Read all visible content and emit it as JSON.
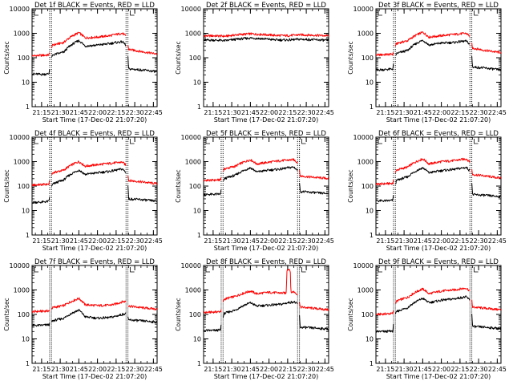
{
  "figure": {
    "background": "#ffffff",
    "axis_color": "#000000"
  },
  "chart_data": [
    {
      "type": "line",
      "title": "Det 1f BLACK = Events, RED = LLD",
      "xlabel": "Start Time (17-Dec-02 21:07:20)",
      "ylabel": "Counts/sec",
      "x_ticks": [
        "21:15",
        "21:30",
        "21:45",
        "22:00",
        "22:15",
        "22:30",
        "22:45"
      ],
      "y_ticks": [
        "1",
        "10",
        "100",
        "1000",
        "10000"
      ],
      "yscale": "log",
      "ylim": [
        1,
        10000
      ],
      "xlim": [
        "21:07:20",
        "22:48:00"
      ],
      "gaps": [
        [
          "21:21:30",
          "21:23:00"
        ],
        [
          "22:23:00",
          "22:24:30"
        ]
      ],
      "series": [
        {
          "color": "#ff0000",
          "x": [
            "21:07:20",
            "21:15",
            "21:21",
            "21:24",
            "21:33",
            "21:45",
            "21:50",
            "22:00",
            "22:10",
            "22:15",
            "22:20",
            "22:23",
            "22:25",
            "22:35",
            "22:45",
            "22:48"
          ],
          "values": [
            120,
            125,
            130,
            330,
            420,
            1050,
            650,
            700,
            800,
            900,
            1000,
            750,
            220,
            180,
            150,
            145
          ]
        },
        {
          "color": "#000000",
          "x": [
            "21:07:20",
            "21:15",
            "21:21",
            "21:24",
            "21:33",
            "21:45",
            "21:50",
            "22:00",
            "22:10",
            "22:15",
            "22:20",
            "22:23",
            "22:25",
            "22:35",
            "22:45",
            "22:48"
          ],
          "values": [
            22,
            21,
            22,
            130,
            170,
            500,
            300,
            330,
            380,
            420,
            450,
            320,
            35,
            32,
            28,
            27
          ]
        }
      ]
    },
    {
      "type": "line",
      "title": "Det 2f BLACK = Events, RED = LLD",
      "xlabel": "Start Time (17-Dec-02 21:07:20)",
      "ylabel": "Counts/sec",
      "x_ticks": [
        "21:15",
        "21:30",
        "21:45",
        "22:00",
        "22:15",
        "22:30",
        "22:45"
      ],
      "y_ticks": [
        "1",
        "10",
        "100",
        "1000",
        "10000"
      ],
      "yscale": "log",
      "ylim": [
        1,
        10000
      ],
      "xlim": [
        "21:07:20",
        "22:48:00"
      ],
      "gaps": [],
      "series": [
        {
          "color": "#ff0000",
          "x": [
            "21:07:20",
            "21:15",
            "21:25",
            "21:35",
            "21:45",
            "21:55",
            "22:05",
            "22:15",
            "22:25",
            "22:35",
            "22:45",
            "22:48"
          ],
          "values": [
            780,
            790,
            760,
            880,
            950,
            900,
            820,
            800,
            870,
            840,
            800,
            790
          ]
        },
        {
          "color": "#000000",
          "x": [
            "21:07:20",
            "21:15",
            "21:25",
            "21:35",
            "21:45",
            "21:55",
            "22:05",
            "22:15",
            "22:25",
            "22:35",
            "22:45",
            "22:48"
          ],
          "values": [
            520,
            530,
            500,
            580,
            640,
            600,
            540,
            530,
            570,
            550,
            520,
            515
          ]
        }
      ]
    },
    {
      "type": "line",
      "title": "Det 3f BLACK = Events, RED = LLD",
      "xlabel": "Start Time (17-Dec-02 21:07:20)",
      "ylabel": "Counts/sec",
      "x_ticks": [
        "21:15",
        "21:30",
        "21:45",
        "22:00",
        "22:15",
        "22:30",
        "22:45"
      ],
      "y_ticks": [
        "1",
        "10",
        "100",
        "1000",
        "10000"
      ],
      "yscale": "log",
      "ylim": [
        1,
        10000
      ],
      "xlim": [
        "21:07:20",
        "22:48:00"
      ],
      "gaps": [
        [
          "21:21:30",
          "21:23:00"
        ],
        [
          "22:23:00",
          "22:24:30"
        ]
      ],
      "series": [
        {
          "color": "#ff0000",
          "x": [
            "21:07:20",
            "21:15",
            "21:21",
            "21:24",
            "21:33",
            "21:45",
            "21:50",
            "22:00",
            "22:10",
            "22:15",
            "22:20",
            "22:23",
            "22:25",
            "22:35",
            "22:45",
            "22:48"
          ],
          "values": [
            130,
            135,
            140,
            380,
            500,
            1100,
            700,
            800,
            900,
            950,
            1000,
            750,
            250,
            200,
            170,
            165
          ]
        },
        {
          "color": "#000000",
          "x": [
            "21:07:20",
            "21:15",
            "21:21",
            "21:24",
            "21:33",
            "21:45",
            "21:50",
            "22:00",
            "22:10",
            "22:15",
            "22:20",
            "22:23",
            "22:25",
            "22:35",
            "22:45",
            "22:48"
          ],
          "values": [
            32,
            33,
            35,
            150,
            200,
            520,
            330,
            400,
            420,
            460,
            480,
            350,
            42,
            38,
            33,
            32
          ]
        }
      ]
    },
    {
      "type": "line",
      "title": "Det 4f BLACK = Events, RED = LLD",
      "xlabel": "Start Time (17-Dec-02 21:07:20)",
      "ylabel": "Counts/sec",
      "x_ticks": [
        "21:15",
        "21:30",
        "21:45",
        "22:00",
        "22:15",
        "22:30",
        "22:45"
      ],
      "y_ticks": [
        "1",
        "10",
        "100",
        "1000",
        "10000"
      ],
      "yscale": "log",
      "ylim": [
        1,
        10000
      ],
      "xlim": [
        "21:07:20",
        "22:48:00"
      ],
      "gaps": [
        [
          "21:21:30",
          "21:23:00"
        ],
        [
          "22:23:00",
          "22:24:30"
        ]
      ],
      "series": [
        {
          "color": "#ff0000",
          "x": [
            "21:07:20",
            "21:15",
            "21:21",
            "21:24",
            "21:33",
            "21:45",
            "21:50",
            "22:00",
            "22:10",
            "22:15",
            "22:20",
            "22:23",
            "22:25",
            "22:35",
            "22:45",
            "22:48"
          ],
          "values": [
            110,
            115,
            120,
            350,
            450,
            1000,
            650,
            750,
            850,
            900,
            950,
            700,
            170,
            150,
            130,
            125
          ]
        },
        {
          "color": "#000000",
          "x": [
            "21:07:20",
            "21:15",
            "21:21",
            "21:24",
            "21:33",
            "21:45",
            "21:50",
            "22:00",
            "22:10",
            "22:15",
            "22:20",
            "22:23",
            "22:25",
            "22:35",
            "22:45",
            "22:48"
          ],
          "values": [
            22,
            22,
            24,
            120,
            180,
            450,
            300,
            350,
            400,
            450,
            500,
            350,
            30,
            28,
            25,
            24
          ]
        }
      ]
    },
    {
      "type": "line",
      "title": "Det 5f BLACK = Events, RED = LLD",
      "xlabel": "Start Time (17-Dec-02 21:07:20)",
      "ylabel": "Counts/sec",
      "x_ticks": [
        "21:15",
        "21:30",
        "21:45",
        "22:00",
        "22:15",
        "22:30",
        "22:45"
      ],
      "y_ticks": [
        "1",
        "10",
        "100",
        "1000",
        "10000"
      ],
      "yscale": "log",
      "ylim": [
        1,
        10000
      ],
      "xlim": [
        "21:07:20",
        "22:48:00"
      ],
      "gaps": [
        [
          "21:21:30",
          "21:23:00"
        ],
        [
          "22:23:00",
          "22:24:30"
        ]
      ],
      "series": [
        {
          "color": "#ff0000",
          "x": [
            "21:07:20",
            "21:15",
            "21:21",
            "21:24",
            "21:33",
            "21:45",
            "21:50",
            "22:00",
            "22:10",
            "22:15",
            "22:20",
            "22:23",
            "22:25",
            "22:35",
            "22:45",
            "22:48"
          ],
          "values": [
            170,
            175,
            180,
            500,
            650,
            1200,
            800,
            950,
            1100,
            1150,
            1200,
            900,
            260,
            230,
            210,
            205
          ]
        },
        {
          "color": "#000000",
          "x": [
            "21:07:20",
            "21:15",
            "21:21",
            "21:24",
            "21:33",
            "21:45",
            "21:50",
            "22:00",
            "22:10",
            "22:15",
            "22:20",
            "22:23",
            "22:25",
            "22:35",
            "22:45",
            "22:48"
          ],
          "values": [
            45,
            46,
            47,
            200,
            280,
            560,
            380,
            450,
            500,
            560,
            600,
            430,
            60,
            55,
            50,
            49
          ]
        }
      ]
    },
    {
      "type": "line",
      "title": "Det 6f BLACK = Events, RED = LLD",
      "xlabel": "Start Time (17-Dec-02 21:07:20)",
      "ylabel": "Counts/sec",
      "x_ticks": [
        "21:15",
        "21:30",
        "21:45",
        "22:00",
        "22:15",
        "22:30",
        "22:45"
      ],
      "y_ticks": [
        "1",
        "10",
        "100",
        "1000",
        "10000"
      ],
      "yscale": "log",
      "ylim": [
        1,
        10000
      ],
      "xlim": [
        "21:07:20",
        "22:48:00"
      ],
      "gaps": [
        [
          "21:21:30",
          "21:23:00"
        ],
        [
          "22:23:00",
          "22:24:30"
        ]
      ],
      "series": [
        {
          "color": "#ff0000",
          "x": [
            "21:07:20",
            "21:15",
            "21:21",
            "21:24",
            "21:33",
            "21:45",
            "21:50",
            "22:00",
            "22:10",
            "22:15",
            "22:20",
            "22:23",
            "22:25",
            "22:35",
            "22:45",
            "22:48"
          ],
          "values": [
            120,
            125,
            130,
            450,
            600,
            1300,
            800,
            1000,
            1100,
            1200,
            1300,
            950,
            300,
            260,
            220,
            215
          ]
        },
        {
          "color": "#000000",
          "x": [
            "21:07:20",
            "21:15",
            "21:21",
            "21:24",
            "21:33",
            "21:45",
            "21:50",
            "22:00",
            "22:10",
            "22:15",
            "22:20",
            "22:23",
            "22:25",
            "22:35",
            "22:45",
            "22:48"
          ],
          "values": [
            25,
            25,
            26,
            170,
            240,
            560,
            350,
            430,
            480,
            530,
            580,
            420,
            45,
            42,
            38,
            37
          ]
        }
      ]
    },
    {
      "type": "line",
      "title": "Det 7f BLACK = Events, RED = LLD",
      "xlabel": "Start Time (17-Dec-02 21:07:20)",
      "ylabel": "Counts/sec",
      "x_ticks": [
        "21:15",
        "21:30",
        "21:45",
        "22:00",
        "22:15",
        "22:30",
        "22:45"
      ],
      "y_ticks": [
        "1",
        "10",
        "100",
        "1000",
        "10000"
      ],
      "yscale": "log",
      "ylim": [
        1,
        10000
      ],
      "xlim": [
        "21:07:20",
        "22:48:00"
      ],
      "gaps": [
        [
          "21:21:30",
          "21:23:00"
        ],
        [
          "22:23:00",
          "22:24:30"
        ]
      ],
      "series": [
        {
          "color": "#ff0000",
          "x": [
            "21:07:20",
            "21:15",
            "21:21",
            "21:24",
            "21:33",
            "21:45",
            "21:50",
            "22:00",
            "22:10",
            "22:15",
            "22:20",
            "22:23",
            "22:25",
            "22:35",
            "22:45",
            "22:48"
          ],
          "values": [
            130,
            135,
            140,
            190,
            230,
            450,
            250,
            230,
            240,
            270,
            330,
            340,
            220,
            190,
            170,
            165
          ]
        },
        {
          "color": "#000000",
          "x": [
            "21:07:20",
            "21:15",
            "21:21",
            "21:24",
            "21:33",
            "21:45",
            "21:50",
            "22:00",
            "22:10",
            "22:15",
            "22:20",
            "22:23",
            "22:25",
            "22:35",
            "22:45",
            "22:48"
          ],
          "values": [
            35,
            36,
            38,
            55,
            70,
            150,
            80,
            70,
            75,
            85,
            100,
            110,
            60,
            55,
            50,
            49
          ]
        }
      ]
    },
    {
      "type": "line",
      "title": "Det 8f BLACK = Events, RED = LLD",
      "xlabel": "Start Time (17-Dec-02 21:07:20)",
      "ylabel": "Counts/sec",
      "x_ticks": [
        "21:15",
        "21:30",
        "21:45",
        "22:00",
        "22:15",
        "22:30",
        "22:45"
      ],
      "y_ticks": [
        "1",
        "10",
        "100",
        "1000",
        "10000"
      ],
      "yscale": "log",
      "ylim": [
        1,
        10000
      ],
      "xlim": [
        "21:07:20",
        "22:48:00"
      ],
      "gaps": [
        [
          "21:21:30",
          "21:23:00"
        ],
        [
          "22:23:00",
          "22:24:30"
        ]
      ],
      "series": [
        {
          "color": "#ff0000",
          "x": [
            "21:07:20",
            "21:15",
            "21:21",
            "21:24",
            "21:33",
            "21:45",
            "21:50",
            "22:00",
            "22:10",
            "22:14",
            "22:14:30",
            "22:17",
            "22:17:30",
            "22:20",
            "22:23",
            "22:25",
            "22:35",
            "22:45",
            "22:48"
          ],
          "values": [
            120,
            125,
            130,
            420,
            550,
            900,
            700,
            800,
            750,
            750,
            7000,
            7000,
            800,
            850,
            650,
            200,
            180,
            160,
            155
          ]
        },
        {
          "color": "#000000",
          "x": [
            "21:07:20",
            "21:15",
            "21:21",
            "21:24",
            "21:33",
            "21:45",
            "21:50",
            "22:00",
            "22:10",
            "22:15",
            "22:20",
            "22:23",
            "22:25",
            "22:35",
            "22:45",
            "22:48"
          ],
          "values": [
            22,
            22,
            23,
            110,
            150,
            300,
            220,
            240,
            260,
            300,
            330,
            260,
            30,
            28,
            26,
            25
          ]
        }
      ]
    },
    {
      "type": "line",
      "title": "Det 9f BLACK = Events, RED = LLD",
      "xlabel": "Start Time (17-Dec-02 21:07:20)",
      "ylabel": "Counts/sec",
      "x_ticks": [
        "21:15",
        "21:30",
        "21:45",
        "22:00",
        "22:15",
        "22:30",
        "22:45"
      ],
      "y_ticks": [
        "1",
        "10",
        "100",
        "1000",
        "10000"
      ],
      "yscale": "log",
      "ylim": [
        1,
        10000
      ],
      "xlim": [
        "21:07:20",
        "22:48:00"
      ],
      "gaps": [
        [
          "21:21:30",
          "21:23:00"
        ],
        [
          "22:23:00",
          "22:24:30"
        ]
      ],
      "series": [
        {
          "color": "#ff0000",
          "x": [
            "21:07:20",
            "21:15",
            "21:21",
            "21:24",
            "21:33",
            "21:45",
            "21:50",
            "22:00",
            "22:10",
            "22:15",
            "22:20",
            "22:23",
            "22:25",
            "22:35",
            "22:45",
            "22:48"
          ],
          "values": [
            100,
            105,
            110,
            350,
            500,
            1100,
            700,
            900,
            1000,
            1100,
            1200,
            900,
            200,
            180,
            160,
            155
          ]
        },
        {
          "color": "#000000",
          "x": [
            "21:07:20",
            "21:15",
            "21:21",
            "21:24",
            "21:33",
            "21:45",
            "21:50",
            "22:00",
            "22:10",
            "22:15",
            "22:20",
            "22:23",
            "22:25",
            "22:35",
            "22:45",
            "22:48"
          ],
          "values": [
            20,
            20,
            21,
            130,
            190,
            450,
            300,
            380,
            430,
            480,
            520,
            380,
            32,
            30,
            27,
            26
          ]
        }
      ]
    }
  ]
}
